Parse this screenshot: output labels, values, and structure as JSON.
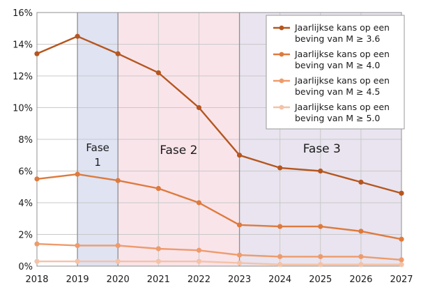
{
  "chart_data": {
    "type": "line",
    "x": [
      2018,
      2019,
      2020,
      2021,
      2022,
      2023,
      2024,
      2025,
      2026,
      2027
    ],
    "x_tick_labels": [
      "2018",
      "2019",
      "2020",
      "2021",
      "2022",
      "2023",
      "2024",
      "2025",
      "2026",
      "2027"
    ],
    "ylim": [
      0,
      16
    ],
    "y_ticks": [
      0,
      2,
      4,
      6,
      8,
      10,
      12,
      14,
      16
    ],
    "y_tick_labels": [
      "0%",
      "2%",
      "4%",
      "6%",
      "8%",
      "10%",
      "12%",
      "14%",
      "16%"
    ],
    "grid": true,
    "legend_position": "top-right",
    "series": [
      {
        "name_line1": "Jaarlijkse kans op een",
        "name_line2": "beving van M ≥ 3.6",
        "values": [
          13.4,
          14.5,
          13.4,
          12.2,
          10.0,
          7.0,
          6.2,
          6.0,
          5.3,
          4.6
        ],
        "color": "#b5561f"
      },
      {
        "name_line1": "Jaarlijkse kans op een",
        "name_line2": "beving van M ≥ 4.0",
        "values": [
          5.5,
          5.8,
          5.4,
          4.9,
          4.0,
          2.6,
          2.5,
          2.5,
          2.2,
          1.7
        ],
        "color": "#de7a3d"
      },
      {
        "name_line1": "Jaarlijkse kans op een",
        "name_line2": "beving van M ≥ 4.5",
        "values": [
          1.4,
          1.3,
          1.3,
          1.1,
          1.0,
          0.7,
          0.6,
          0.6,
          0.6,
          0.4
        ],
        "color": "#ee9b6c"
      },
      {
        "name_line1": "Jaarlijkse kans op een",
        "name_line2": "beving van M ≥ 5.0",
        "values": [
          0.3,
          0.3,
          0.3,
          0.3,
          0.3,
          0.2,
          0.1,
          0.1,
          0.1,
          0.1
        ],
        "color": "#f5c2a6"
      }
    ],
    "phases": [
      {
        "label_line1": "Fase",
        "label_line2": "1",
        "from": 2019,
        "to": 2020,
        "color": "#dfe3f2"
      },
      {
        "label_line1": "Fase 2",
        "label_line2": "",
        "from": 2020,
        "to": 2023,
        "color": "#f9e4ea"
      },
      {
        "label_line1": "Fase 3",
        "label_line2": "",
        "from": 2023,
        "to": 2027,
        "color": "#e9e4ef"
      }
    ]
  }
}
